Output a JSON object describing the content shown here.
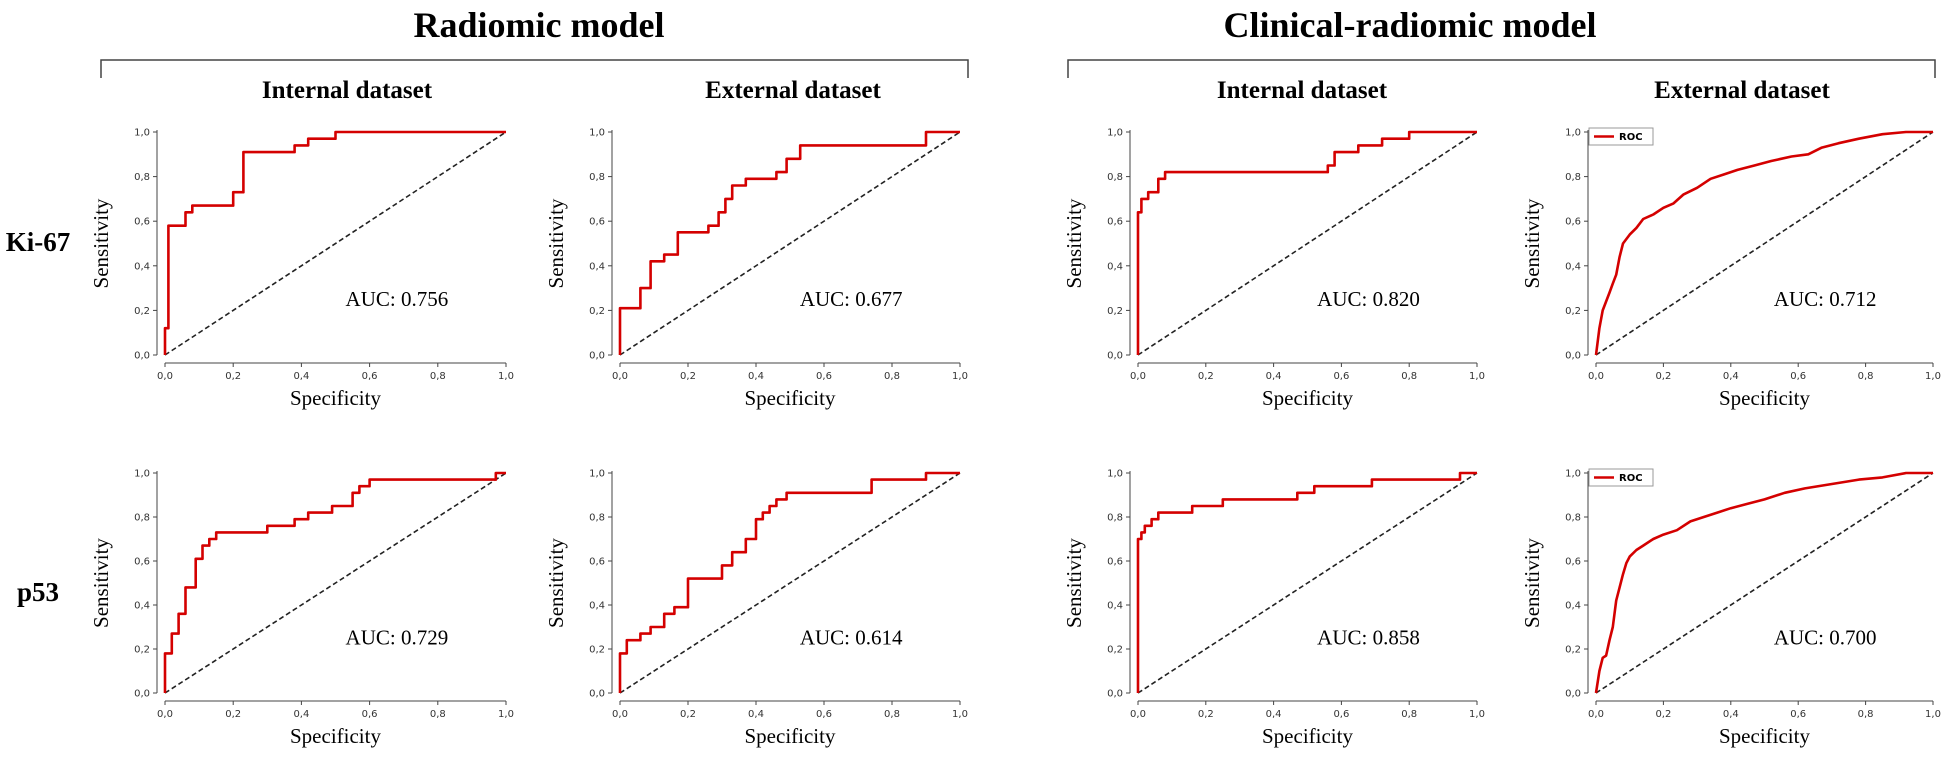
{
  "groups": [
    {
      "title": "Radiomic model",
      "sub_titles": [
        "Internal dataset",
        "External dataset"
      ]
    },
    {
      "title": "Clinical-radiomic model",
      "sub_titles": [
        "Internal dataset",
        "External dataset"
      ]
    }
  ],
  "row_labels": [
    "Ki-67",
    "p53"
  ],
  "colors": {
    "roc": "#d40000",
    "diagonal": "#222222",
    "axis": "#444444"
  },
  "chart_data": [
    {
      "type": "line",
      "model": "Radiomic model",
      "dataset": "Internal dataset",
      "marker": "Ki-67",
      "xlabel": "Specificity",
      "ylabel": "Sensitivity",
      "xlim": [
        0,
        1
      ],
      "ylim": [
        0,
        1
      ],
      "ticks": [
        "0,0",
        "0,2",
        "0,4",
        "0,6",
        "0,8",
        "1,0"
      ],
      "auc_label": "AUC: 0.756",
      "legend": null,
      "series": [
        {
          "name": "ROC",
          "x": [
            0,
            0,
            0.01,
            0.01,
            0.02,
            0.02,
            0.06,
            0.06,
            0.08,
            0.08,
            0.2,
            0.2,
            0.23,
            0.23,
            0.38,
            0.38,
            0.42,
            0.42,
            0.5,
            0.5,
            1.0
          ],
          "y": [
            0,
            0.12,
            0.12,
            0.58,
            0.58,
            0.58,
            0.58,
            0.64,
            0.64,
            0.67,
            0.67,
            0.73,
            0.73,
            0.91,
            0.91,
            0.94,
            0.94,
            0.97,
            0.97,
            1.0,
            1.0
          ]
        }
      ]
    },
    {
      "type": "line",
      "model": "Radiomic model",
      "dataset": "External dataset",
      "marker": "Ki-67",
      "xlabel": "Specificity",
      "ylabel": "Sensitivity",
      "xlim": [
        0,
        1
      ],
      "ylim": [
        0,
        1
      ],
      "ticks": [
        "0,0",
        "0,2",
        "0,4",
        "0,6",
        "0,8",
        "1,0"
      ],
      "auc_label": "AUC: 0.677",
      "legend": null,
      "series": [
        {
          "name": "ROC",
          "x": [
            0,
            0,
            0.06,
            0.06,
            0.09,
            0.09,
            0.13,
            0.13,
            0.17,
            0.17,
            0.26,
            0.26,
            0.29,
            0.29,
            0.31,
            0.31,
            0.33,
            0.33,
            0.37,
            0.37,
            0.4,
            0.4,
            0.46,
            0.46,
            0.49,
            0.49,
            0.53,
            0.53,
            0.9,
            0.9,
            1.0
          ],
          "y": [
            0,
            0.21,
            0.21,
            0.3,
            0.3,
            0.42,
            0.42,
            0.45,
            0.45,
            0.55,
            0.55,
            0.58,
            0.58,
            0.64,
            0.64,
            0.7,
            0.7,
            0.76,
            0.76,
            0.79,
            0.79,
            0.79,
            0.79,
            0.82,
            0.82,
            0.88,
            0.88,
            0.94,
            0.94,
            1.0,
            1.0
          ]
        }
      ]
    },
    {
      "type": "line",
      "model": "Clinical-radiomic model",
      "dataset": "Internal dataset",
      "marker": "Ki-67",
      "xlabel": "Specificity",
      "ylabel": "Sensitivity",
      "xlim": [
        0,
        1
      ],
      "ylim": [
        0,
        1
      ],
      "ticks": [
        "0,0",
        "0,2",
        "0,4",
        "0,6",
        "0,8",
        "1,0"
      ],
      "auc_label": "AUC: 0.820",
      "legend": null,
      "series": [
        {
          "name": "ROC",
          "x": [
            0,
            0,
            0.01,
            0.01,
            0.03,
            0.03,
            0.06,
            0.06,
            0.08,
            0.08,
            0.56,
            0.56,
            0.58,
            0.58,
            0.65,
            0.65,
            0.72,
            0.72,
            0.8,
            0.8,
            1.0
          ],
          "y": [
            0,
            0.64,
            0.64,
            0.7,
            0.7,
            0.73,
            0.73,
            0.79,
            0.79,
            0.82,
            0.82,
            0.85,
            0.85,
            0.91,
            0.91,
            0.94,
            0.94,
            0.97,
            0.97,
            1.0,
            1.0
          ]
        }
      ]
    },
    {
      "type": "line",
      "model": "Clinical-radiomic model",
      "dataset": "External dataset",
      "marker": "Ki-67",
      "xlabel": "Specificity",
      "ylabel": "Sensitivity",
      "xlim": [
        0,
        1
      ],
      "ylim": [
        0,
        1
      ],
      "ticks": [
        "0,0",
        "0,2",
        "0,4",
        "0,6",
        "0,8",
        "1,0"
      ],
      "auc_label": "AUC: 0.712",
      "legend": "ROC",
      "series": [
        {
          "name": "ROC",
          "x": [
            0,
            0.01,
            0.02,
            0.03,
            0.04,
            0.05,
            0.06,
            0.07,
            0.08,
            0.1,
            0.12,
            0.14,
            0.17,
            0.2,
            0.23,
            0.26,
            0.3,
            0.34,
            0.38,
            0.42,
            0.47,
            0.52,
            0.58,
            0.63,
            0.67,
            0.72,
            0.78,
            0.85,
            0.92,
            1.0
          ],
          "y": [
            0,
            0.12,
            0.2,
            0.24,
            0.28,
            0.32,
            0.36,
            0.44,
            0.5,
            0.54,
            0.57,
            0.61,
            0.63,
            0.66,
            0.68,
            0.72,
            0.75,
            0.79,
            0.81,
            0.83,
            0.85,
            0.87,
            0.89,
            0.9,
            0.93,
            0.95,
            0.97,
            0.99,
            1.0,
            1.0
          ]
        }
      ]
    },
    {
      "type": "line",
      "model": "Radiomic model",
      "dataset": "Internal dataset",
      "marker": "p53",
      "xlabel": "Specificity",
      "ylabel": "Sensitivity",
      "xlim": [
        0,
        1
      ],
      "ylim": [
        0,
        1
      ],
      "ticks": [
        "0,0",
        "0,2",
        "0,4",
        "0,6",
        "0,8",
        "1,0"
      ],
      "auc_label": "AUC: 0.729",
      "legend": null,
      "series": [
        {
          "name": "ROC",
          "x": [
            0,
            0,
            0.02,
            0.02,
            0.04,
            0.04,
            0.06,
            0.06,
            0.09,
            0.09,
            0.11,
            0.11,
            0.13,
            0.13,
            0.15,
            0.15,
            0.3,
            0.3,
            0.35,
            0.35,
            0.38,
            0.38,
            0.42,
            0.42,
            0.49,
            0.49,
            0.55,
            0.55,
            0.57,
            0.57,
            0.6,
            0.6,
            0.97,
            0.97,
            1.0
          ],
          "y": [
            0,
            0.18,
            0.18,
            0.27,
            0.27,
            0.36,
            0.36,
            0.48,
            0.48,
            0.61,
            0.61,
            0.67,
            0.67,
            0.7,
            0.7,
            0.73,
            0.73,
            0.76,
            0.76,
            0.76,
            0.76,
            0.79,
            0.79,
            0.82,
            0.82,
            0.85,
            0.85,
            0.91,
            0.91,
            0.94,
            0.94,
            0.97,
            0.97,
            1.0,
            1.0
          ]
        }
      ]
    },
    {
      "type": "line",
      "model": "Radiomic model",
      "dataset": "External dataset",
      "marker": "p53",
      "xlabel": "Specificity",
      "ylabel": "Sensitivity",
      "xlim": [
        0,
        1
      ],
      "ylim": [
        0,
        1
      ],
      "ticks": [
        "0,0",
        "0,2",
        "0,4",
        "0,6",
        "0,8",
        "1,0"
      ],
      "auc_label": "AUC: 0.614",
      "legend": null,
      "series": [
        {
          "name": "ROC",
          "x": [
            0,
            0,
            0.02,
            0.02,
            0.06,
            0.06,
            0.09,
            0.09,
            0.13,
            0.13,
            0.16,
            0.16,
            0.2,
            0.2,
            0.3,
            0.3,
            0.33,
            0.33,
            0.37,
            0.37,
            0.4,
            0.4,
            0.42,
            0.42,
            0.44,
            0.44,
            0.46,
            0.46,
            0.49,
            0.49,
            0.74,
            0.74,
            0.9,
            0.9,
            1.0
          ],
          "y": [
            0,
            0.18,
            0.18,
            0.24,
            0.24,
            0.27,
            0.27,
            0.3,
            0.3,
            0.36,
            0.36,
            0.39,
            0.39,
            0.52,
            0.52,
            0.58,
            0.58,
            0.64,
            0.64,
            0.7,
            0.7,
            0.79,
            0.79,
            0.82,
            0.82,
            0.85,
            0.85,
            0.88,
            0.88,
            0.91,
            0.91,
            0.97,
            0.97,
            1.0,
            1.0
          ]
        }
      ]
    },
    {
      "type": "line",
      "model": "Clinical-radiomic model",
      "dataset": "Internal dataset",
      "marker": "p53",
      "xlabel": "Specificity",
      "ylabel": "Sensitivity",
      "xlim": [
        0,
        1
      ],
      "ylim": [
        0,
        1
      ],
      "ticks": [
        "0,0",
        "0,2",
        "0,4",
        "0,6",
        "0,8",
        "1,0"
      ],
      "auc_label": "AUC: 0.858",
      "legend": null,
      "series": [
        {
          "name": "ROC",
          "x": [
            0,
            0,
            0.01,
            0.01,
            0.02,
            0.02,
            0.04,
            0.04,
            0.06,
            0.06,
            0.16,
            0.16,
            0.25,
            0.25,
            0.47,
            0.47,
            0.52,
            0.52,
            0.69,
            0.69,
            0.95,
            0.95,
            1.0
          ],
          "y": [
            0,
            0.7,
            0.7,
            0.73,
            0.73,
            0.76,
            0.76,
            0.79,
            0.79,
            0.82,
            0.82,
            0.85,
            0.85,
            0.88,
            0.88,
            0.91,
            0.91,
            0.94,
            0.94,
            0.97,
            0.97,
            1.0,
            1.0
          ]
        }
      ]
    },
    {
      "type": "line",
      "model": "Clinical-radiomic model",
      "dataset": "External dataset",
      "marker": "p53",
      "xlabel": "Specificity",
      "ylabel": "Sensitivity",
      "xlim": [
        0,
        1
      ],
      "ylim": [
        0,
        1
      ],
      "ticks": [
        "0,0",
        "0,2",
        "0,4",
        "0,6",
        "0,8",
        "1,0"
      ],
      "auc_label": "AUC: 0.700",
      "legend": "ROC",
      "series": [
        {
          "name": "ROC",
          "x": [
            0,
            0.01,
            0.02,
            0.03,
            0.04,
            0.05,
            0.06,
            0.07,
            0.08,
            0.09,
            0.1,
            0.12,
            0.14,
            0.17,
            0.2,
            0.24,
            0.28,
            0.32,
            0.36,
            0.4,
            0.45,
            0.5,
            0.56,
            0.62,
            0.7,
            0.78,
            0.85,
            0.92,
            1.0
          ],
          "y": [
            0,
            0.1,
            0.16,
            0.17,
            0.24,
            0.3,
            0.42,
            0.48,
            0.54,
            0.59,
            0.62,
            0.65,
            0.67,
            0.7,
            0.72,
            0.74,
            0.78,
            0.8,
            0.82,
            0.84,
            0.86,
            0.88,
            0.91,
            0.93,
            0.95,
            0.97,
            0.98,
            1.0,
            1.0
          ]
        }
      ]
    }
  ]
}
